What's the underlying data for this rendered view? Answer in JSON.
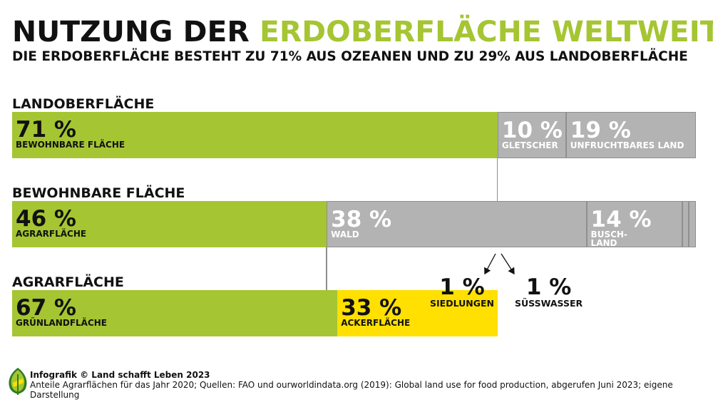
{
  "title": {
    "part1": "NUTZUNG DER ",
    "part2": "ERDOBERFLÄCHE WELTWEIT"
  },
  "subtitle": "DIE ERDOBERFLÄCHE BESTEHT ZU 71% AUS OZEANEN UND ZU 29% AUS LANDOBERFLÄCHE",
  "colors": {
    "green": "#a5c532",
    "grey": "#b3b3b3",
    "yellow": "#ffe000",
    "accent": "#a5c532"
  },
  "chart_data": {
    "type": "bar",
    "orientation": "horizontal-stacked",
    "bars": [
      {
        "title": "LANDOBERFLÄCHE",
        "segments": [
          {
            "value": 71,
            "pct": "71 %",
            "label": "BEWOHNBARE FLÄCHE",
            "color": "green"
          },
          {
            "value": 10,
            "pct": "10 %",
            "label": "GLETSCHER",
            "color": "grey"
          },
          {
            "value": 19,
            "pct": "19 %",
            "label": "UNFRUCHTBARES LAND",
            "color": "grey"
          }
        ]
      },
      {
        "title": "BEWOHNBARE FLÄCHE",
        "segments": [
          {
            "value": 46,
            "pct": "46 %",
            "label": "AGRARFLÄCHE",
            "color": "green"
          },
          {
            "value": 38,
            "pct": "38 %",
            "label": "WALD",
            "color": "grey"
          },
          {
            "value": 14,
            "pct": "14 %",
            "label": "BUSCH-\nLAND",
            "color": "grey"
          },
          {
            "value": 1,
            "pct": "1 %",
            "label": "SIEDLUNGEN",
            "color": "grey",
            "callout": true
          },
          {
            "value": 1,
            "pct": "1 %",
            "label": "SÜSSWASSER",
            "color": "grey",
            "callout": true
          }
        ]
      },
      {
        "title": "AGRARFLÄCHE",
        "segments": [
          {
            "value": 67,
            "pct": "67 %",
            "label": "GRÜNLANDFLÄCHE",
            "color": "green"
          },
          {
            "value": 33,
            "pct": "33 %",
            "label": "ACKERFLÄCHE",
            "color": "yellow"
          }
        ]
      }
    ]
  },
  "footer": {
    "credit": "Infografik © Land schafft Leben 2023",
    "source": "Anteile Agrarflächen für das Jahr 2020; Quellen: FAO und ourworldindata.org (2019): Global land use for food production, abgerufen Juni 2023; eigene Darstellung",
    "logo": "leaf-logo"
  }
}
